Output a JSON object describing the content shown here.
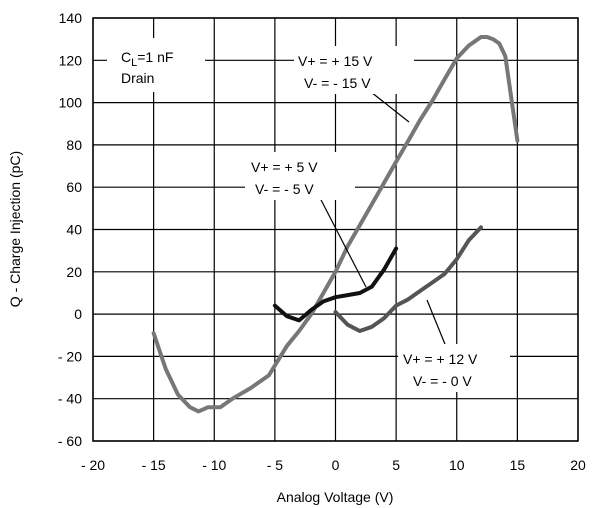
{
  "chart_data": {
    "type": "line",
    "title": "",
    "xlabel": "Analog Voltage (V)",
    "ylabel": "Q - Charge Injection (pC)",
    "xlim": [
      -20,
      20
    ],
    "ylim": [
      -60,
      140
    ],
    "grid": true,
    "x_ticks": [
      "- 20",
      "- 15",
      "- 10",
      "- 5",
      "0",
      "5",
      "10",
      "15",
      "20"
    ],
    "y_ticks": [
      "140",
      "120",
      "100",
      "80",
      "60",
      "40",
      "20",
      "0",
      "- 20",
      "- 40",
      "- 60"
    ],
    "condition_label": {
      "cl_main": "C",
      "cl_sub": "L",
      "cl_value": "=1 nF",
      "node": "Drain"
    },
    "series": [
      {
        "name": "V+ = + 15 V, V- = - 15 V",
        "color": "#777777",
        "label_line1": "V+ = + 15 V",
        "label_line2": "V- = - 15 V",
        "x": [
          -15,
          -14,
          -13,
          -12,
          -11.3,
          -10.5,
          -9.5,
          -8.5,
          -7,
          -5.5,
          -4,
          -3,
          -2,
          -1,
          0,
          1,
          2,
          3,
          4,
          5,
          6,
          7,
          8,
          9,
          10,
          11,
          11.5,
          12,
          12.5,
          13,
          13.5,
          14,
          15
        ],
        "y": [
          -9,
          -26,
          -38,
          -44,
          -46,
          -44,
          -44,
          -40,
          -35,
          -29,
          -15,
          -8,
          0,
          10,
          20,
          32,
          42,
          52,
          62,
          72,
          82,
          92,
          101,
          111,
          121,
          127,
          129,
          131,
          131,
          130,
          128,
          122,
          82
        ]
      },
      {
        "name": "V+ = + 5 V, V- = - 5 V",
        "color": "#111111",
        "label_line1": "V+ = + 5 V",
        "label_line2": "V- = - 5 V",
        "x": [
          -5,
          -4,
          -3,
          -2,
          -1,
          0,
          1,
          2,
          3,
          4,
          5
        ],
        "y": [
          4,
          -1,
          -3,
          2,
          6,
          8,
          9,
          10,
          13,
          21,
          31
        ]
      },
      {
        "name": "V+ = + 12 V, V- = - 0 V",
        "color": "#555555",
        "label_line1": "V+ = + 12 V",
        "label_line2": "V- = - 0 V",
        "x": [
          0,
          1,
          2,
          3,
          4,
          5,
          6,
          7,
          8,
          9,
          10,
          11,
          12
        ],
        "y": [
          1,
          -5,
          -8,
          -6,
          -2,
          4,
          7,
          11,
          15,
          19,
          26,
          35,
          41
        ]
      }
    ]
  }
}
